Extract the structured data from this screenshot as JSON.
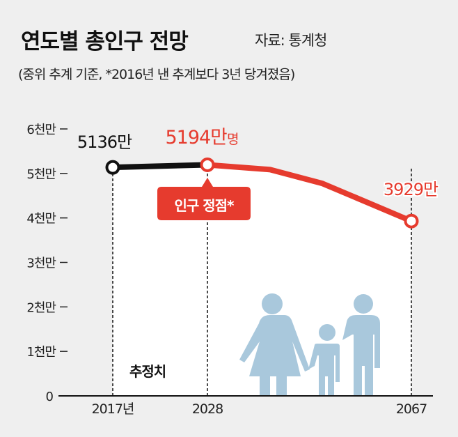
{
  "header": {
    "title": "연도별 총인구 전망",
    "source": "자료: 통계청",
    "subtitle": "(중위 추계 기준, *2016년 낸 추계보다 3년 당겨졌음)"
  },
  "chart_data": {
    "type": "line",
    "title": "연도별 총인구 전망",
    "ylabel": "",
    "xlabel": "",
    "ylim": [
      0,
      60000000
    ],
    "y_ticks": [
      {
        "value": 0,
        "label": "0"
      },
      {
        "value": 10000000,
        "label": "1천만"
      },
      {
        "value": 20000000,
        "label": "2천만"
      },
      {
        "value": 30000000,
        "label": "3천만"
      },
      {
        "value": 40000000,
        "label": "4천만"
      },
      {
        "value": 50000000,
        "label": "5천만"
      },
      {
        "value": 60000000,
        "label": "6천만"
      }
    ],
    "x_ticks": [
      {
        "value": 2017,
        "label": "2017년"
      },
      {
        "value": 2028,
        "label": "2028"
      },
      {
        "value": 2067,
        "label": "2067"
      }
    ],
    "series": [
      {
        "segment": "actual",
        "color": "#111111",
        "points": [
          [
            2017,
            51360000
          ],
          [
            2028,
            51940000
          ]
        ]
      },
      {
        "segment": "projection",
        "color": "#e63b2e",
        "points": [
          [
            2028,
            51940000
          ],
          [
            2040,
            50860000
          ],
          [
            2050,
            47740000
          ],
          [
            2067,
            39290000
          ]
        ]
      }
    ],
    "annotations": [
      {
        "label": "5136만",
        "x": 2017,
        "color": "#111111"
      },
      {
        "label": "5194만",
        "unit": "명",
        "x": 2028,
        "color": "#e63b2e"
      },
      {
        "label": "3929만",
        "x": 2067,
        "color": "#e63b2e"
      },
      {
        "label": "인구 정점*",
        "x": 2028,
        "type": "callout",
        "color": "#e63b2e"
      },
      {
        "label": "추정치",
        "type": "region-label"
      }
    ],
    "grid": false,
    "legend": "none",
    "colors": {
      "background": "#efefef",
      "plot_fill": "#ffffff",
      "red": "#e63b2e",
      "illustration": "#a9c8dc"
    }
  }
}
